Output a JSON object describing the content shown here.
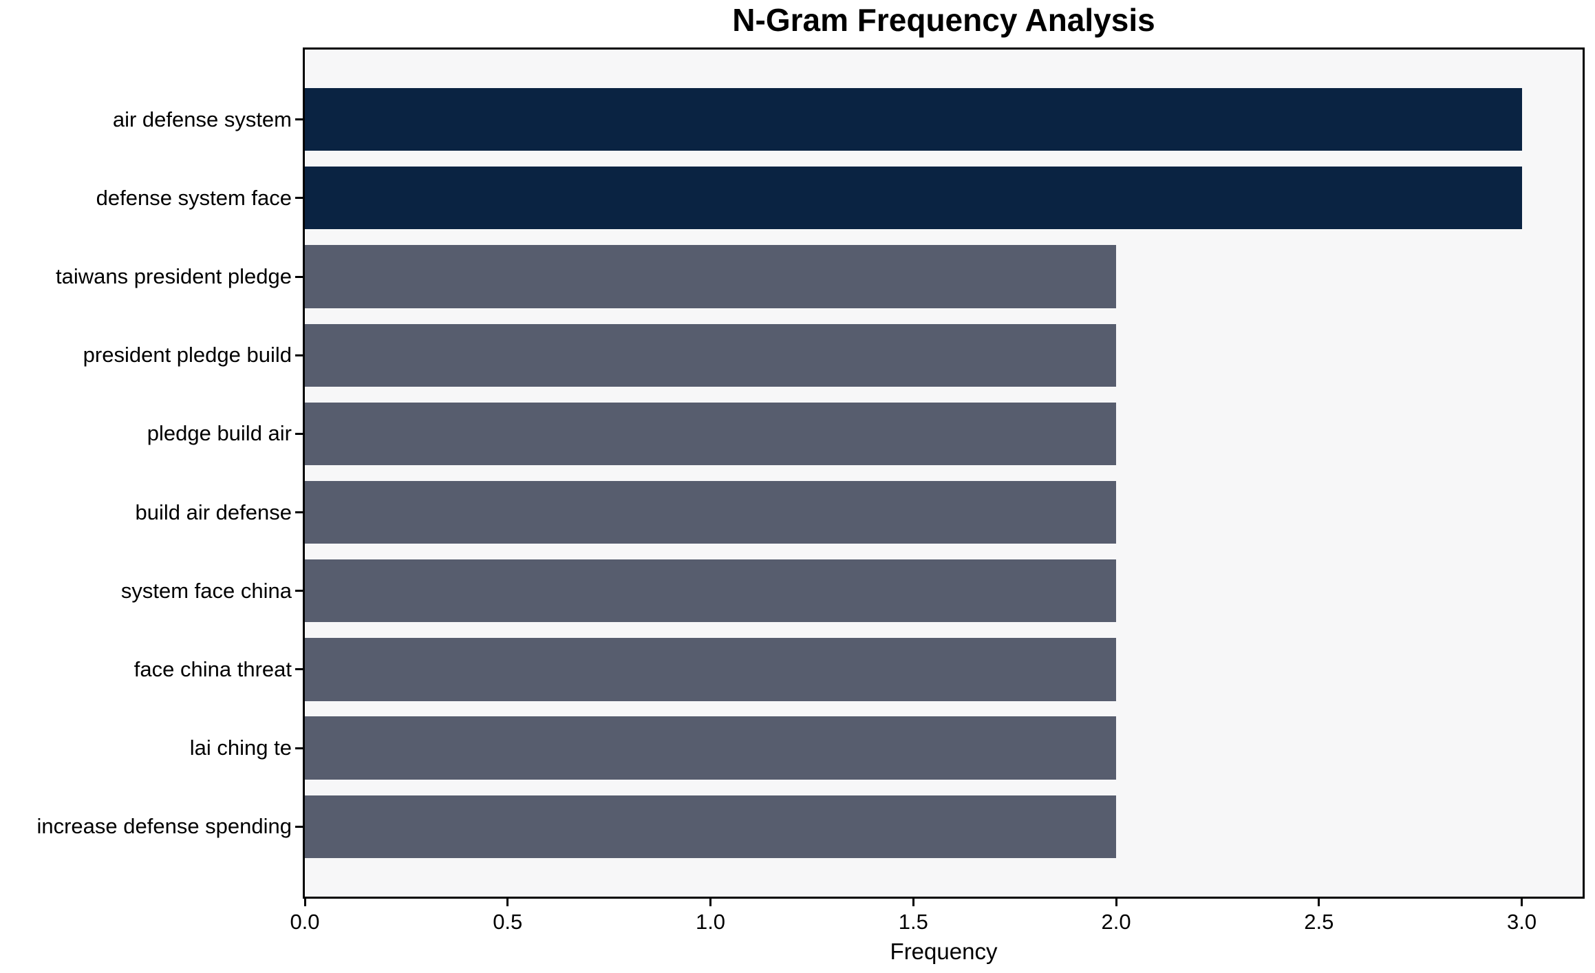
{
  "chart_data": {
    "type": "bar",
    "orientation": "horizontal",
    "title": "N-Gram Frequency Analysis",
    "xlabel": "Frequency",
    "ylabel": "",
    "categories": [
      "air defense system",
      "defense system face",
      "taiwans president pledge",
      "president pledge build",
      "pledge build air",
      "build air defense",
      "system face china",
      "face china threat",
      "lai ching te",
      "increase defense spending"
    ],
    "values": [
      3,
      3,
      2,
      2,
      2,
      2,
      2,
      2,
      2,
      2
    ],
    "bar_colors": [
      "#0a2342",
      "#0a2342",
      "#575d6e",
      "#575d6e",
      "#575d6e",
      "#575d6e",
      "#575d6e",
      "#575d6e",
      "#575d6e",
      "#575d6e"
    ],
    "xlim": [
      0,
      3.15
    ],
    "xticks": [
      0,
      0.5,
      1,
      1.5,
      2,
      2.5,
      3
    ],
    "xtick_labels": [
      "0.0",
      "0.5",
      "1.0",
      "1.5",
      "2.0",
      "2.5",
      "3.0"
    ],
    "grid": false,
    "legend": "none",
    "colors": {
      "highlight": "#0a2342",
      "base": "#575d6e",
      "plot_background": "#f7f7f8",
      "figure_background": "#ffffff",
      "axis": "#000000"
    }
  }
}
